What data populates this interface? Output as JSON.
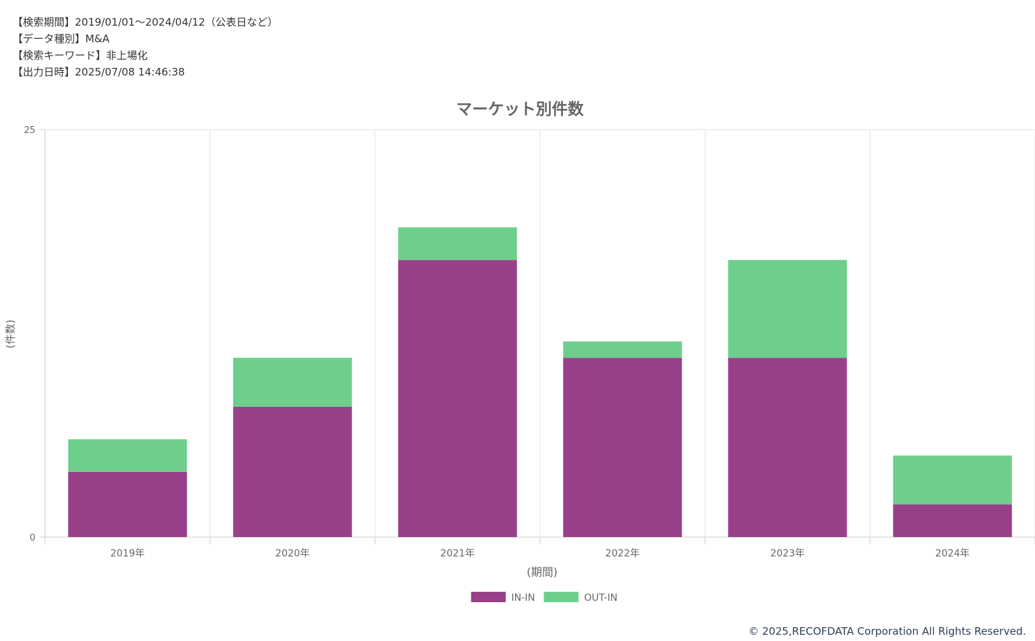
{
  "meta": {
    "lines": [
      "【検索期間】2019/01/01～2024/04/12（公表日など）",
      "【データ種別】M&A",
      "【検索キーワード】非上場化",
      "【出力日時】2025/07/08 14:46:38"
    ]
  },
  "chart_data": {
    "type": "bar",
    "stacked": true,
    "title": "マーケット別件数",
    "xlabel": "(期間)",
    "ylabel": "(件数)",
    "categories": [
      "2019年",
      "2020年",
      "2021年",
      "2022年",
      "2023年",
      "2024年"
    ],
    "series": [
      {
        "name": "IN-IN",
        "color": "#984089",
        "values": [
          4,
          8,
          17,
          11,
          11,
          2
        ]
      },
      {
        "name": "OUT-IN",
        "color": "#6dcf8b",
        "values": [
          2,
          3,
          2,
          1,
          6,
          3
        ]
      }
    ],
    "ylim": [
      0,
      25
    ],
    "yticks": [
      "0",
      "25"
    ],
    "grid": true,
    "legend": "bottom"
  },
  "footer": {
    "copyright": "© 2025,RECOFDATA Corporation All Rights Reserved."
  }
}
